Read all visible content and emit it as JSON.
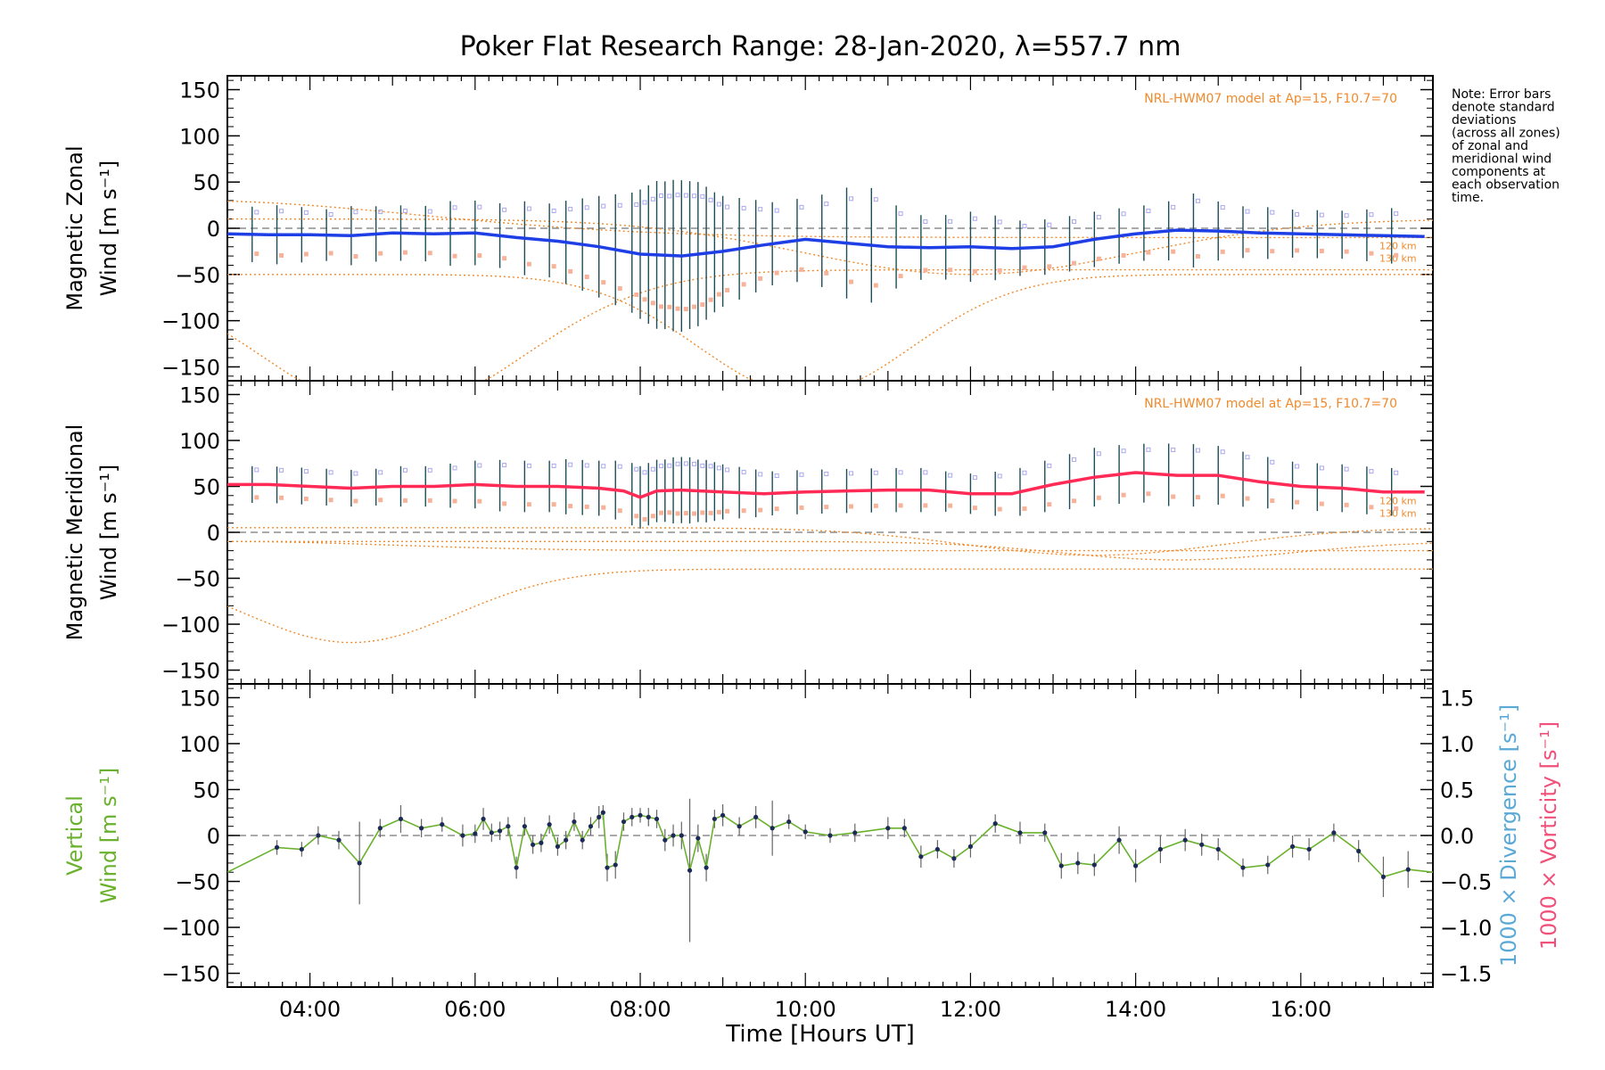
{
  "figure": {
    "title": "Poker Flat Research Range: 28-Jan-2020, λ=557.7 nm",
    "note_lines": [
      "Note: Error bars",
      "denote standard",
      "deviations",
      "(across all zones)",
      "of zonal and",
      "meridional wind",
      "components at",
      "each observation",
      "time."
    ],
    "colors": {
      "zonal": "#1f3fe6",
      "meridional": "#ff2a55",
      "vertical": "#6ab22e",
      "divergence": "#5aa9d6",
      "vorticity": "#f0507a",
      "model": "#f08a2c",
      "markers_purple": "#a9a7ef",
      "markers_salmon": "#f7b39a",
      "errorbar": "#1d4e57"
    }
  },
  "chart_data": [
    {
      "type": "line",
      "ylabel_lines": [
        "Magnetic Zonal",
        "Wind [m s⁻¹]"
      ],
      "ylim": [
        -165,
        165
      ],
      "yticks": [
        -150,
        -100,
        -50,
        0,
        50,
        100,
        150
      ],
      "xlim": [
        3.0,
        17.6
      ],
      "model_label": "NRL-HWM07 model at Ap=15, F10.7=70",
      "model_alt_labels": [
        "120 km",
        "130 km"
      ],
      "series": [
        {
          "name": "zonal",
          "x": [
            3.0,
            3.5,
            4.0,
            4.5,
            5.0,
            5.5,
            6.0,
            6.5,
            7.0,
            7.5,
            8.0,
            8.5,
            9.0,
            9.5,
            10.0,
            10.5,
            11.0,
            11.5,
            12.0,
            12.5,
            13.0,
            13.5,
            14.0,
            14.5,
            15.0,
            15.5,
            16.0,
            16.5,
            17.0,
            17.5
          ],
          "values": [
            -6,
            -7,
            -7,
            -8,
            -5,
            -6,
            -5,
            -10,
            -14,
            -20,
            -28,
            -30,
            -25,
            -18,
            -12,
            -16,
            -20,
            -21,
            -20,
            -22,
            -20,
            -12,
            -6,
            -2,
            -3,
            -5,
            -6,
            -7,
            -8,
            -9
          ]
        }
      ],
      "error_x": [
        3.3,
        3.6,
        3.9,
        4.2,
        4.5,
        4.8,
        5.1,
        5.4,
        5.7,
        6.0,
        6.3,
        6.6,
        6.9,
        7.1,
        7.3,
        7.5,
        7.7,
        7.9,
        8.0,
        8.1,
        8.2,
        8.3,
        8.4,
        8.5,
        8.6,
        8.7,
        8.8,
        8.9,
        9.0,
        9.2,
        9.4,
        9.6,
        9.9,
        10.2,
        10.5,
        10.8,
        11.1,
        11.4,
        11.7,
        12.0,
        12.3,
        12.6,
        12.9,
        13.2,
        13.5,
        13.8,
        14.1,
        14.4,
        14.7,
        15.0,
        15.3,
        15.6,
        15.9,
        16.2,
        16.5,
        16.8,
        17.1
      ],
      "error_half": [
        30,
        32,
        30,
        28,
        32,
        30,
        30,
        30,
        35,
        35,
        35,
        40,
        40,
        45,
        50,
        55,
        60,
        65,
        70,
        75,
        80,
        80,
        82,
        82,
        80,
        78,
        72,
        65,
        60,
        55,
        50,
        45,
        45,
        50,
        60,
        62,
        45,
        35,
        35,
        38,
        35,
        30,
        30,
        30,
        30,
        30,
        30,
        32,
        40,
        32,
        28,
        28,
        26,
        26,
        26,
        28,
        30
      ]
    },
    {
      "type": "line",
      "ylabel_lines": [
        "Magnetic Meridional",
        "Wind [m s⁻¹]"
      ],
      "ylim": [
        -165,
        165
      ],
      "yticks": [
        -150,
        -100,
        -50,
        0,
        50,
        100,
        150
      ],
      "xlim": [
        3.0,
        17.6
      ],
      "model_label": "NRL-HWM07 model at Ap=15, F10.7=70",
      "model_alt_labels": [
        "120 km",
        "130 km"
      ],
      "series": [
        {
          "name": "meridional",
          "x": [
            3.0,
            3.5,
            4.0,
            4.5,
            5.0,
            5.5,
            6.0,
            6.5,
            7.0,
            7.5,
            7.8,
            8.0,
            8.2,
            8.5,
            9.0,
            9.5,
            10.0,
            10.5,
            11.0,
            11.5,
            12.0,
            12.5,
            13.0,
            13.5,
            14.0,
            14.5,
            15.0,
            15.5,
            16.0,
            16.5,
            17.0,
            17.5
          ],
          "values": [
            52,
            52,
            50,
            48,
            50,
            50,
            52,
            50,
            50,
            48,
            45,
            38,
            45,
            46,
            44,
            42,
            44,
            45,
            46,
            46,
            42,
            42,
            52,
            60,
            65,
            62,
            62,
            55,
            50,
            48,
            44,
            44
          ]
        }
      ],
      "error_x": [
        3.3,
        3.6,
        3.9,
        4.2,
        4.5,
        4.8,
        5.1,
        5.4,
        5.7,
        6.0,
        6.3,
        6.6,
        6.9,
        7.1,
        7.3,
        7.5,
        7.7,
        7.9,
        8.0,
        8.1,
        8.2,
        8.3,
        8.4,
        8.5,
        8.6,
        8.7,
        8.8,
        8.9,
        9.0,
        9.2,
        9.4,
        9.6,
        9.9,
        10.2,
        10.5,
        10.8,
        11.1,
        11.4,
        11.7,
        12.0,
        12.3,
        12.6,
        12.9,
        13.2,
        13.5,
        13.8,
        14.1,
        14.4,
        14.7,
        15.0,
        15.3,
        15.6,
        15.9,
        16.2,
        16.5,
        16.8,
        17.1
      ],
      "error_half": [
        20,
        20,
        20,
        20,
        20,
        20,
        22,
        22,
        24,
        26,
        28,
        28,
        28,
        30,
        30,
        30,
        32,
        34,
        34,
        34,
        34,
        34,
        36,
        36,
        36,
        34,
        34,
        32,
        30,
        28,
        26,
        24,
        24,
        24,
        24,
        24,
        24,
        24,
        22,
        22,
        24,
        26,
        28,
        30,
        32,
        32,
        32,
        34,
        34,
        32,
        30,
        28,
        26,
        26,
        26,
        26,
        26
      ]
    },
    {
      "type": "line",
      "ylabel_lines": [
        "Vertical",
        "Wind [m s⁻¹]"
      ],
      "ylabel_right_1": "1000 × Divergence [s⁻¹]",
      "ylabel_right_2": "1000 × Vorticity [s⁻¹]",
      "ylim": [
        -165,
        165
      ],
      "yticks": [
        -150,
        -100,
        -50,
        0,
        50,
        100,
        150
      ],
      "y2lim": [
        -1.65,
        1.65
      ],
      "y2ticks": [
        -1.5,
        -1.0,
        -0.5,
        0.0,
        0.5,
        1.0,
        1.5
      ],
      "xlabel": "Time [Hours UT]",
      "xlim": [
        3.0,
        17.6
      ],
      "xticks": [
        "04:00",
        "06:00",
        "08:00",
        "10:00",
        "12:00",
        "14:00",
        "16:00"
      ],
      "xtick_values": [
        4,
        6,
        8,
        10,
        12,
        14,
        16
      ],
      "series": [
        {
          "name": "vertical",
          "x": [
            3.0,
            3.6,
            3.9,
            4.1,
            4.35,
            4.6,
            4.85,
            5.1,
            5.35,
            5.6,
            5.85,
            6.0,
            6.1,
            6.2,
            6.3,
            6.4,
            6.5,
            6.6,
            6.7,
            6.8,
            6.9,
            7.0,
            7.1,
            7.2,
            7.3,
            7.4,
            7.5,
            7.55,
            7.6,
            7.7,
            7.8,
            7.9,
            8.0,
            8.1,
            8.2,
            8.3,
            8.4,
            8.5,
            8.6,
            8.7,
            8.8,
            8.9,
            9.0,
            9.2,
            9.4,
            9.6,
            9.8,
            10.0,
            10.3,
            10.6,
            11.0,
            11.2,
            11.4,
            11.6,
            11.8,
            12.0,
            12.3,
            12.6,
            12.9,
            13.1,
            13.3,
            13.5,
            13.8,
            14.0,
            14.3,
            14.6,
            14.8,
            15.0,
            15.3,
            15.6,
            15.9,
            16.1,
            16.4,
            16.7,
            17.0,
            17.3,
            17.6
          ],
          "values": [
            -40,
            -13,
            -15,
            0,
            -5,
            -30,
            8,
            18,
            8,
            12,
            0,
            2,
            18,
            3,
            5,
            10,
            -35,
            10,
            -10,
            -8,
            12,
            -12,
            -5,
            15,
            -5,
            10,
            20,
            25,
            -35,
            -32,
            15,
            20,
            22,
            20,
            18,
            -5,
            0,
            0,
            -38,
            -3,
            -35,
            18,
            22,
            10,
            20,
            8,
            15,
            4,
            0,
            3,
            8,
            8,
            -23,
            -15,
            -25,
            -12,
            13,
            3,
            3,
            -33,
            -30,
            -32,
            -5,
            -33,
            -15,
            -5,
            -10,
            -15,
            -35,
            -32,
            -12,
            -15,
            3,
            -17,
            -45,
            -37,
            -40
          ]
        }
      ],
      "error_half": [
        0,
        8,
        8,
        10,
        10,
        45,
        10,
        15,
        10,
        8,
        12,
        10,
        12,
        10,
        10,
        10,
        12,
        10,
        10,
        10,
        10,
        10,
        10,
        10,
        10,
        10,
        12,
        8,
        15,
        15,
        10,
        10,
        8,
        10,
        10,
        12,
        12,
        15,
        78,
        15,
        15,
        10,
        12,
        10,
        12,
        30,
        8,
        8,
        8,
        10,
        12,
        10,
        12,
        10,
        10,
        12,
        10,
        12,
        10,
        14,
        12,
        12,
        15,
        18,
        15,
        12,
        12,
        12,
        10,
        10,
        12,
        12,
        10,
        12,
        22,
        20,
        0
      ]
    }
  ]
}
